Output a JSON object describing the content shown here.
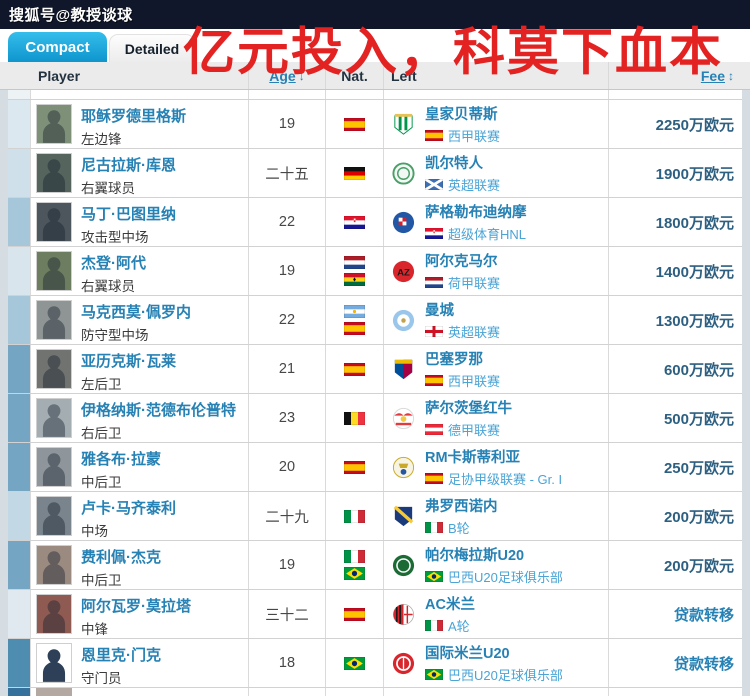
{
  "topbar": {
    "title": "搜狐号@教授谈球"
  },
  "tabs": {
    "compact": "Compact",
    "detailed": "Detailed"
  },
  "overlay": {
    "text": "亿元投入，科莫下血本",
    "color": "#e32222"
  },
  "header": {
    "player": "Player",
    "age": "Age",
    "age_sort_icon": "↓",
    "nat": "Nat.",
    "left": "Left",
    "fee": "Fee",
    "fee_sort_icon": "↕"
  },
  "colors": {
    "active_tab": "#14a0d6",
    "link_blue": "#2681b4",
    "league_blue": "#4aa4d6",
    "fee_navy": "#2d5f80",
    "overlay_red": "#e32222"
  },
  "rows": [
    {
      "name": "耶稣罗德里格斯",
      "position": "左边锋",
      "age": "19",
      "nat_flags": [
        "es"
      ],
      "club": "皇家贝蒂斯",
      "badge": "betis",
      "league": "西甲联赛",
      "league_flag": "es",
      "fee": "2250万欧元",
      "fee_loan": false,
      "strip_color": "#dce8ef",
      "photo": {
        "bg": "#7e9078"
      }
    },
    {
      "name": "尼古拉斯·库恩",
      "position": "右翼球员",
      "age": "二十五",
      "nat_flags": [
        "de"
      ],
      "club": "凯尔特人",
      "badge": "celtic",
      "league": "英超联赛",
      "league_flag": "sct",
      "fee": "1900万欧元",
      "fee_loan": false,
      "strip_color": "#cfe0ea",
      "photo": {
        "bg": "#55645c"
      }
    },
    {
      "name": "马丁·巴图里纳",
      "position": "攻击型中场",
      "age": "22",
      "nat_flags": [
        "hr"
      ],
      "club": "萨格勒布迪纳摩",
      "badge": "dinamo",
      "league": "超级体育HNL",
      "league_flag": "hr",
      "fee": "1800万欧元",
      "fee_loan": false,
      "strip_color": "#a6c7da",
      "photo": {
        "bg": "#4d565c"
      }
    },
    {
      "name": "杰登·阿代",
      "position": "右翼球员",
      "age": "19",
      "nat_flags": [
        "nl",
        "gh"
      ],
      "club": "阿尔克马尔",
      "badge": "az",
      "league": "荷甲联赛",
      "league_flag": "nl",
      "fee": "1400万欧元",
      "fee_loan": false,
      "strip_color": "#d8e5ed",
      "photo": {
        "bg": "#6d7d60"
      }
    },
    {
      "name": "马克西莫·佩罗内",
      "position": "防守型中场",
      "age": "22",
      "nat_flags": [
        "ar",
        "es"
      ],
      "club": "曼城",
      "badge": "mancity",
      "league": "英超联赛",
      "league_flag": "en",
      "fee": "1300万欧元",
      "fee_loan": false,
      "strip_color": "#a6c7da",
      "photo": {
        "bg": "#8e9594"
      }
    },
    {
      "name": "亚历克斯·瓦莱",
      "position": "左后卫",
      "age": "21",
      "nat_flags": [
        "es"
      ],
      "club": "巴塞罗那",
      "badge": "barca",
      "league": "西甲联赛",
      "league_flag": "es",
      "fee": "600万欧元",
      "fee_loan": false,
      "strip_color": "#74a6c3",
      "photo": {
        "bg": "#70736f"
      }
    },
    {
      "name": "伊格纳斯·范德布伦普特",
      "position": "右后卫",
      "age": "23",
      "nat_flags": [
        "be"
      ],
      "club": "萨尔茨堡红牛",
      "badge": "salzburg",
      "league": "德甲联赛",
      "league_flag": "at",
      "fee": "500万欧元",
      "fee_loan": false,
      "strip_color": "#74a6c3",
      "photo": {
        "bg": "#a3adb2"
      }
    },
    {
      "name": "雅各布·拉蒙",
      "position": "中后卫",
      "age": "20",
      "nat_flags": [
        "es"
      ],
      "club": "RM卡斯蒂利亚",
      "badge": "castilla",
      "league": "足协甲级联赛 - Gr. I",
      "league_flag": "es",
      "fee": "250万欧元",
      "fee_loan": false,
      "strip_color": "#74a6c3",
      "photo": {
        "bg": "#8e969c"
      }
    },
    {
      "name": "卢卡·马齐泰利",
      "position": "中场",
      "age": "二十九",
      "nat_flags": [
        "it"
      ],
      "club": "弗罗西诺内",
      "badge": "frosinone",
      "league": "B轮",
      "league_flag": "it",
      "fee": "200万欧元",
      "fee_loan": false,
      "strip_color": "#c2d8e4",
      "photo": {
        "bg": "#79848c"
      }
    },
    {
      "name": "费利佩·杰克",
      "position": "中后卫",
      "age": "19",
      "nat_flags": [
        "it",
        "br"
      ],
      "club": "帕尔梅拉斯U20",
      "badge": "palmeiras",
      "league": "巴西U20足球俱乐部",
      "league_flag": "br",
      "fee": "200万欧元",
      "fee_loan": false,
      "strip_color": "#74a6c3",
      "photo": {
        "bg": "#9b8a80"
      }
    },
    {
      "name": "阿尔瓦罗·莫拉塔",
      "position": "中锋",
      "age": "三十二",
      "nat_flags": [
        "es"
      ],
      "club": "AC米兰",
      "badge": "acmilan",
      "league": "A轮",
      "league_flag": "it",
      "fee": "贷款转移",
      "fee_loan": true,
      "strip_color": "#dfe9ef",
      "photo": {
        "bg": "#8f5a52"
      }
    },
    {
      "name": "恩里克·门克",
      "position": "守门员",
      "age": "18",
      "nat_flags": [
        "br"
      ],
      "club": "国际米兰U20",
      "badge": "inter",
      "league": "巴西U20足球俱乐部",
      "league_flag": "br",
      "fee": "贷款转移",
      "fee_loan": true,
      "strip_color": "#4f8db0",
      "photo": {
        "bg": "#ffffff",
        "fg": "#2e4057"
      }
    }
  ],
  "next_row_partial": {
    "strip_color": "#35719a"
  }
}
